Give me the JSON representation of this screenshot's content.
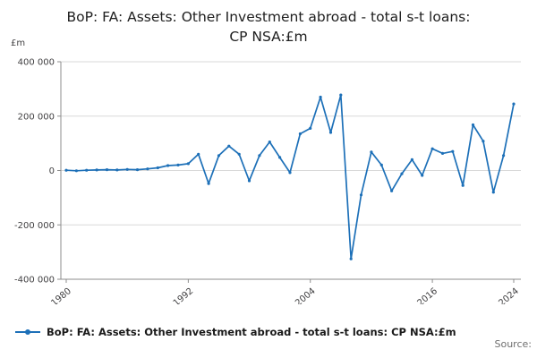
{
  "header": {
    "title_line1": "BoP: FA: Assets: Other Investment abroad - total s-t loans:",
    "title_line2": "CP NSA:£m"
  },
  "chart_data": {
    "type": "line",
    "title": "BoP: FA: Assets: Other Investment abroad - total s-t loans: CP NSA:£m",
    "xlabel": "",
    "ylabel": "£m",
    "x": [
      1980,
      1981,
      1982,
      1983,
      1984,
      1985,
      1986,
      1987,
      1988,
      1989,
      1990,
      1991,
      1992,
      1993,
      1994,
      1995,
      1996,
      1997,
      1998,
      1999,
      2000,
      2001,
      2002,
      2003,
      2004,
      2005,
      2006,
      2007,
      2008,
      2009,
      2010,
      2011,
      2012,
      2013,
      2014,
      2015,
      2016,
      2017,
      2018,
      2019,
      2020,
      2021,
      2022,
      2023,
      2024
    ],
    "series": [
      {
        "name": "BoP: FA: Assets: Other Investment abroad - total s-t loans: CP NSA:£m",
        "values": [
          1000,
          -1000,
          1000,
          2000,
          3000,
          2000,
          4000,
          3000,
          6000,
          10000,
          18000,
          20000,
          25000,
          60000,
          -48000,
          55000,
          90000,
          60000,
          -38000,
          55000,
          105000,
          48000,
          -8000,
          135000,
          155000,
          270000,
          140000,
          278000,
          -325000,
          -90000,
          68000,
          20000,
          -75000,
          -12000,
          40000,
          -18000,
          80000,
          63000,
          70000,
          -55000,
          168000,
          108000,
          -80000,
          55000,
          245000
        ]
      }
    ],
    "ylim": [
      -400000,
      400000
    ],
    "yticks": [
      400000,
      200000,
      0,
      -200000,
      -400000
    ],
    "ytick_labels": [
      "400 000",
      "200 000",
      "0",
      "-200 000",
      "-400 000"
    ],
    "xticks": [
      1980,
      1992,
      2004,
      2016,
      2024
    ],
    "color": "#1d70b8",
    "grid": "horizontal",
    "legend_position": "bottom-left"
  },
  "footer": {
    "source_label": "Source:"
  }
}
